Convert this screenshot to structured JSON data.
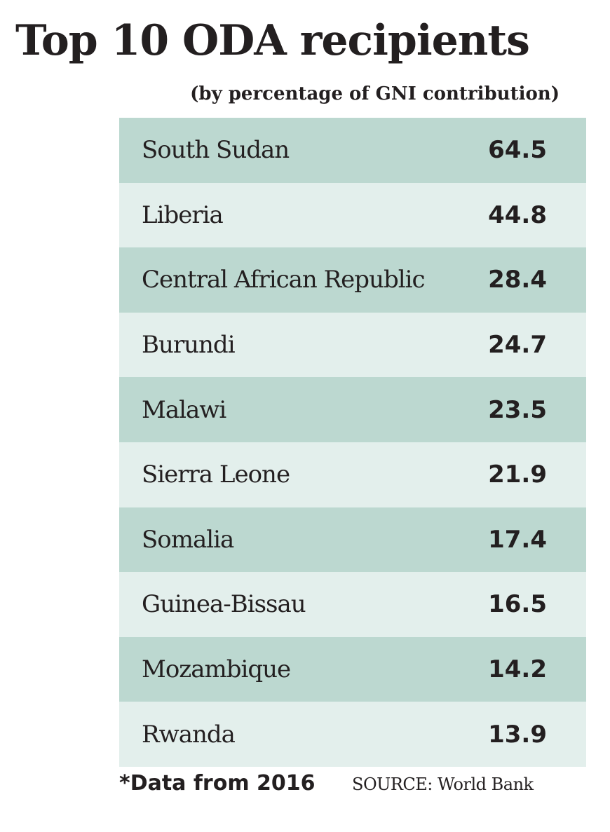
{
  "title": "Top 10 ODA recipients",
  "subtitle": "(by percentage of GNI contribution)",
  "footnote": "*Data from 2016",
  "source": "SOURCE: World Bank",
  "colors": {
    "row_dark": "#bcd8d0",
    "row_light": "#e3efec",
    "text": "#231f20"
  },
  "chart_data": {
    "type": "table",
    "title": "Top 10 ODA recipients",
    "subtitle": "(by percentage of GNI contribution)",
    "rows": [
      {
        "country": "South Sudan",
        "value": "64.5"
      },
      {
        "country": "Liberia",
        "value": "44.8"
      },
      {
        "country": "Central African Republic",
        "value": "28.4"
      },
      {
        "country": "Burundi",
        "value": "24.7"
      },
      {
        "country": "Malawi",
        "value": "23.5"
      },
      {
        "country": "Sierra Leone",
        "value": "21.9"
      },
      {
        "country": "Somalia",
        "value": "17.4"
      },
      {
        "country": "Guinea-Bissau",
        "value": "16.5"
      },
      {
        "country": "Mozambique",
        "value": "14.2"
      },
      {
        "country": "Rwanda",
        "value": "13.9"
      }
    ]
  }
}
